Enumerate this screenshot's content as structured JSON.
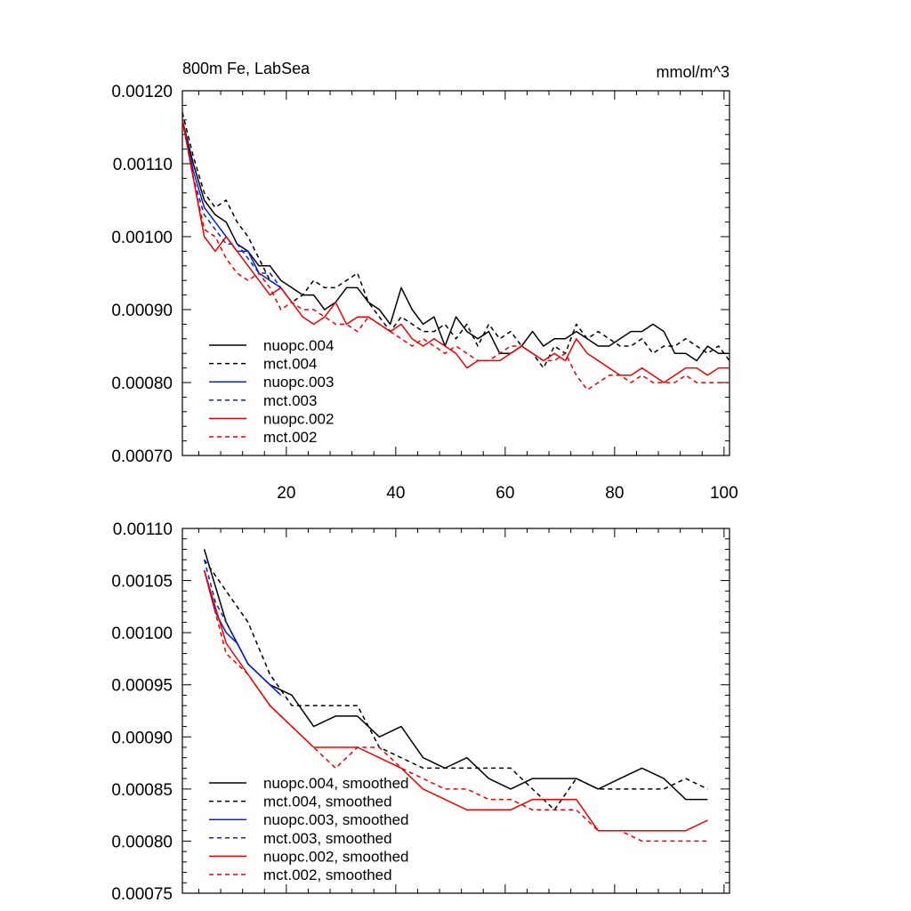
{
  "chart_data": [
    {
      "type": "line",
      "title": "800m Fe, LabSea",
      "units": "mmol/m^3",
      "xlim": [
        1,
        101
      ],
      "ylim": [
        0.0007,
        0.0012
      ],
      "x_ticks": [
        20,
        40,
        60,
        80,
        100
      ],
      "x_tick_labels": [
        "20",
        "40",
        "60",
        "80",
        "100"
      ],
      "y_ticks": [
        0.0007,
        0.0008,
        0.0009,
        0.001,
        0.0011,
        0.0012
      ],
      "y_tick_labels": [
        "0.00070",
        "0.00080",
        "0.00090",
        "0.00100",
        "0.00110",
        "0.00120"
      ],
      "legend_position": "bottom-left",
      "series": [
        {
          "name": "nuopc.004",
          "color": "#000000",
          "dash": false,
          "x": [
            1,
            3,
            5,
            7,
            9,
            11,
            13,
            15,
            17,
            19,
            21,
            23,
            25,
            27,
            29,
            31,
            33,
            35,
            37,
            39,
            41,
            43,
            45,
            47,
            49,
            51,
            53,
            55,
            57,
            59,
            61,
            63,
            65,
            67,
            69,
            71,
            73,
            75,
            77,
            79,
            81,
            83,
            85,
            87,
            89,
            91,
            93,
            95,
            97,
            99,
            101
          ],
          "values": [
            0.00116,
            0.0011,
            0.00105,
            0.00103,
            0.00102,
            0.00099,
            0.00098,
            0.00096,
            0.00096,
            0.00094,
            0.00093,
            0.00092,
            0.00092,
            0.0009,
            0.00091,
            0.00093,
            0.00093,
            0.00091,
            0.0009,
            0.00088,
            0.00093,
            0.0009,
            0.00088,
            0.00089,
            0.00085,
            0.00089,
            0.00087,
            0.00086,
            0.00087,
            0.00084,
            0.00084,
            0.00085,
            0.00087,
            0.00085,
            0.00086,
            0.00086,
            0.00087,
            0.00086,
            0.00085,
            0.00085,
            0.00086,
            0.00087,
            0.00087,
            0.00088,
            0.00087,
            0.00084,
            0.00084,
            0.00083,
            0.00085,
            0.00084,
            0.00084
          ]
        },
        {
          "name": "mct.004",
          "color": "#000000",
          "dash": true,
          "x": [
            1,
            3,
            5,
            7,
            9,
            11,
            13,
            15,
            17,
            19,
            21,
            23,
            25,
            27,
            29,
            31,
            33,
            35,
            37,
            39,
            41,
            43,
            45,
            47,
            49,
            51,
            53,
            55,
            57,
            59,
            61,
            63,
            65,
            67,
            69,
            71,
            73,
            75,
            77,
            79,
            81,
            83,
            85,
            87,
            89,
            91,
            93,
            95,
            97,
            99,
            101
          ],
          "values": [
            0.00117,
            0.00111,
            0.00106,
            0.00104,
            0.00105,
            0.00102,
            0.001,
            0.00097,
            0.00094,
            0.00093,
            0.00091,
            0.00092,
            0.00094,
            0.00093,
            0.00093,
            0.00094,
            0.00095,
            0.00091,
            0.00089,
            0.00087,
            0.00089,
            0.00088,
            0.00087,
            0.00087,
            0.00088,
            0.00086,
            0.00088,
            0.00085,
            0.00088,
            0.00086,
            0.00087,
            0.00085,
            0.00084,
            0.00082,
            0.00085,
            0.00084,
            0.00088,
            0.00086,
            0.00087,
            0.00086,
            0.00085,
            0.00085,
            0.00086,
            0.00084,
            0.00085,
            0.00085,
            0.00086,
            0.00085,
            0.00084,
            0.00085,
            0.00083
          ]
        },
        {
          "name": "nuopc.003",
          "color": "#0022dd",
          "dash": false,
          "x": [
            1,
            3,
            5,
            7,
            9,
            11,
            13,
            15,
            17,
            19,
            21
          ],
          "values": [
            0.00116,
            0.00109,
            0.00104,
            0.00102,
            0.001,
            0.00098,
            0.00098,
            0.00095,
            0.00094,
            0.00093,
            0.00091
          ]
        },
        {
          "name": "mct.003",
          "color": "#0022dd",
          "dash": true,
          "x": [
            1,
            3,
            5,
            7,
            9,
            11,
            13,
            15,
            17,
            19,
            21
          ],
          "values": [
            0.00116,
            0.00108,
            0.00103,
            0.00101,
            0.00099,
            0.00099,
            0.00097,
            0.00095,
            0.00095,
            0.00093,
            0.00091
          ]
        },
        {
          "name": "nuopc.002",
          "color": "#ee0000",
          "dash": false,
          "x": [
            1,
            3,
            5,
            7,
            9,
            11,
            13,
            15,
            17,
            19,
            21,
            23,
            25,
            27,
            29,
            31,
            33,
            35,
            37,
            39,
            41,
            43,
            45,
            47,
            49,
            51,
            53,
            55,
            57,
            59,
            61,
            63,
            65,
            67,
            69,
            71,
            73,
            75,
            77,
            79,
            81,
            83,
            85,
            87,
            89,
            91,
            93,
            95,
            97,
            99,
            101
          ],
          "values": [
            0.00116,
            0.00108,
            0.001,
            0.00098,
            0.001,
            0.00098,
            0.00096,
            0.00094,
            0.00092,
            0.00093,
            0.00091,
            0.00089,
            0.00088,
            0.00089,
            0.00091,
            0.00088,
            0.00089,
            0.00089,
            0.00088,
            0.00087,
            0.00088,
            0.00086,
            0.00085,
            0.00086,
            0.00085,
            0.00084,
            0.00082,
            0.00083,
            0.00083,
            0.00083,
            0.00084,
            0.00085,
            0.00084,
            0.00083,
            0.00084,
            0.00083,
            0.00086,
            0.00084,
            0.00083,
            0.00082,
            0.00081,
            0.00081,
            0.00082,
            0.00081,
            0.0008,
            0.00081,
            0.00082,
            0.00082,
            0.00081,
            0.00082,
            0.00082
          ]
        },
        {
          "name": "mct.002",
          "color": "#ee0000",
          "dash": true,
          "x": [
            1,
            3,
            5,
            7,
            9,
            11,
            13,
            15,
            17,
            19,
            21,
            23,
            25,
            27,
            29,
            31,
            33,
            35,
            37,
            39,
            41,
            43,
            45,
            47,
            49,
            51,
            53,
            55,
            57,
            59,
            61,
            63,
            65,
            67,
            69,
            71,
            73,
            75,
            77,
            79,
            81,
            83,
            85,
            87,
            89,
            91,
            93,
            95,
            97,
            99,
            101
          ],
          "values": [
            0.00116,
            0.00108,
            0.00101,
            0.001,
            0.00097,
            0.00095,
            0.00094,
            0.00095,
            0.00093,
            0.0009,
            0.00091,
            0.0009,
            0.0009,
            0.00089,
            0.00088,
            0.00088,
            0.00087,
            0.00089,
            0.00088,
            0.00087,
            0.00086,
            0.00085,
            0.00086,
            0.00085,
            0.00084,
            0.00085,
            0.00084,
            0.00083,
            0.00083,
            0.00084,
            0.00085,
            0.00085,
            0.00084,
            0.00083,
            0.00083,
            0.00084,
            0.00081,
            0.00079,
            0.0008,
            0.00081,
            0.00081,
            0.0008,
            0.00081,
            0.0008,
            0.0008,
            0.0008,
            0.00081,
            0.0008,
            0.0008,
            0.0008,
            0.0008
          ]
        }
      ],
      "legend": [
        "nuopc.004",
        "mct.004",
        "nuopc.003",
        "mct.003",
        "nuopc.002",
        "mct.002"
      ]
    },
    {
      "type": "line",
      "title": "",
      "units": "",
      "xlim": [
        1,
        101
      ],
      "ylim": [
        0.00075,
        0.0011
      ],
      "x_ticks": [
        20,
        40,
        60,
        80,
        100
      ],
      "x_tick_labels": [],
      "y_ticks": [
        0.00075,
        0.0008,
        0.00085,
        0.0009,
        0.00095,
        0.001,
        0.00105,
        0.0011
      ],
      "y_tick_labels": [
        "0.00075",
        "0.00080",
        "0.00085",
        "0.00090",
        "0.00095",
        "0.00100",
        "0.00105",
        "0.00110"
      ],
      "legend_position": "bottom-left",
      "series": [
        {
          "name": "nuopc.004, smoothed",
          "color": "#000000",
          "dash": false,
          "x": [
            5,
            9,
            13,
            17,
            21,
            25,
            29,
            33,
            37,
            41,
            45,
            49,
            53,
            57,
            61,
            65,
            69,
            73,
            77,
            81,
            85,
            89,
            93,
            97
          ],
          "values": [
            0.00108,
            0.00101,
            0.00097,
            0.00095,
            0.00094,
            0.00091,
            0.00092,
            0.00092,
            0.0009,
            0.00091,
            0.00088,
            0.00087,
            0.00088,
            0.00086,
            0.00085,
            0.00086,
            0.00086,
            0.00086,
            0.00085,
            0.00086,
            0.00087,
            0.00086,
            0.00084,
            0.00084
          ]
        },
        {
          "name": "mct.004, smoothed",
          "color": "#000000",
          "dash": true,
          "x": [
            5,
            9,
            13,
            17,
            21,
            25,
            29,
            33,
            37,
            41,
            45,
            49,
            53,
            57,
            61,
            65,
            69,
            73,
            77,
            81,
            85,
            89,
            93,
            97
          ],
          "values": [
            0.00107,
            0.00104,
            0.00101,
            0.00096,
            0.00093,
            0.00093,
            0.00093,
            0.00093,
            0.00089,
            0.00088,
            0.00087,
            0.00087,
            0.00087,
            0.00087,
            0.00087,
            0.00085,
            0.00083,
            0.00086,
            0.00085,
            0.00085,
            0.00085,
            0.00085,
            0.00086,
            0.00085
          ]
        },
        {
          "name": "nuopc.003, smoothed",
          "color": "#0022dd",
          "dash": false,
          "x": [
            5,
            7,
            9,
            11,
            13,
            15,
            17,
            19
          ],
          "values": [
            0.00106,
            0.00102,
            0.001,
            0.00099,
            0.00097,
            0.00096,
            0.00095,
            0.00094
          ]
        },
        {
          "name": "mct.003, smoothed",
          "color": "#0022dd",
          "dash": true,
          "x": [
            5,
            7,
            9,
            11,
            13,
            15,
            17,
            19
          ],
          "values": [
            0.00107,
            0.00103,
            0.00101,
            0.00099,
            0.00097,
            0.00096,
            0.00095,
            0.00094
          ]
        },
        {
          "name": "nuopc.002, smoothed",
          "color": "#ee0000",
          "dash": false,
          "x": [
            5,
            9,
            13,
            17,
            21,
            25,
            29,
            33,
            37,
            41,
            45,
            49,
            53,
            57,
            61,
            65,
            69,
            73,
            77,
            81,
            85,
            89,
            93,
            97
          ],
          "values": [
            0.00106,
            0.00099,
            0.00096,
            0.00093,
            0.00091,
            0.00089,
            0.00089,
            0.00089,
            0.00088,
            0.00087,
            0.00085,
            0.00084,
            0.00083,
            0.00083,
            0.00083,
            0.00084,
            0.00084,
            0.00084,
            0.00081,
            0.00081,
            0.00081,
            0.00081,
            0.00081,
            0.00082
          ]
        },
        {
          "name": "mct.002, smoothed",
          "color": "#ee0000",
          "dash": true,
          "x": [
            5,
            9,
            13,
            17,
            21,
            25,
            29,
            33,
            37,
            41,
            45,
            49,
            53,
            57,
            61,
            65,
            69,
            73,
            77,
            81,
            85,
            89,
            93,
            97
          ],
          "values": [
            0.00106,
            0.00098,
            0.00096,
            0.00093,
            0.00091,
            0.00089,
            0.00087,
            0.00089,
            0.00089,
            0.00087,
            0.00086,
            0.00085,
            0.00085,
            0.00084,
            0.00084,
            0.00083,
            0.00083,
            0.00083,
            0.00081,
            0.00081,
            0.0008,
            0.0008,
            0.0008,
            0.0008
          ]
        }
      ],
      "legend": [
        "nuopc.004, smoothed",
        "mct.004, smoothed",
        "nuopc.003, smoothed",
        "mct.003, smoothed",
        "nuopc.002, smoothed",
        "mct.002, smoothed"
      ]
    }
  ]
}
